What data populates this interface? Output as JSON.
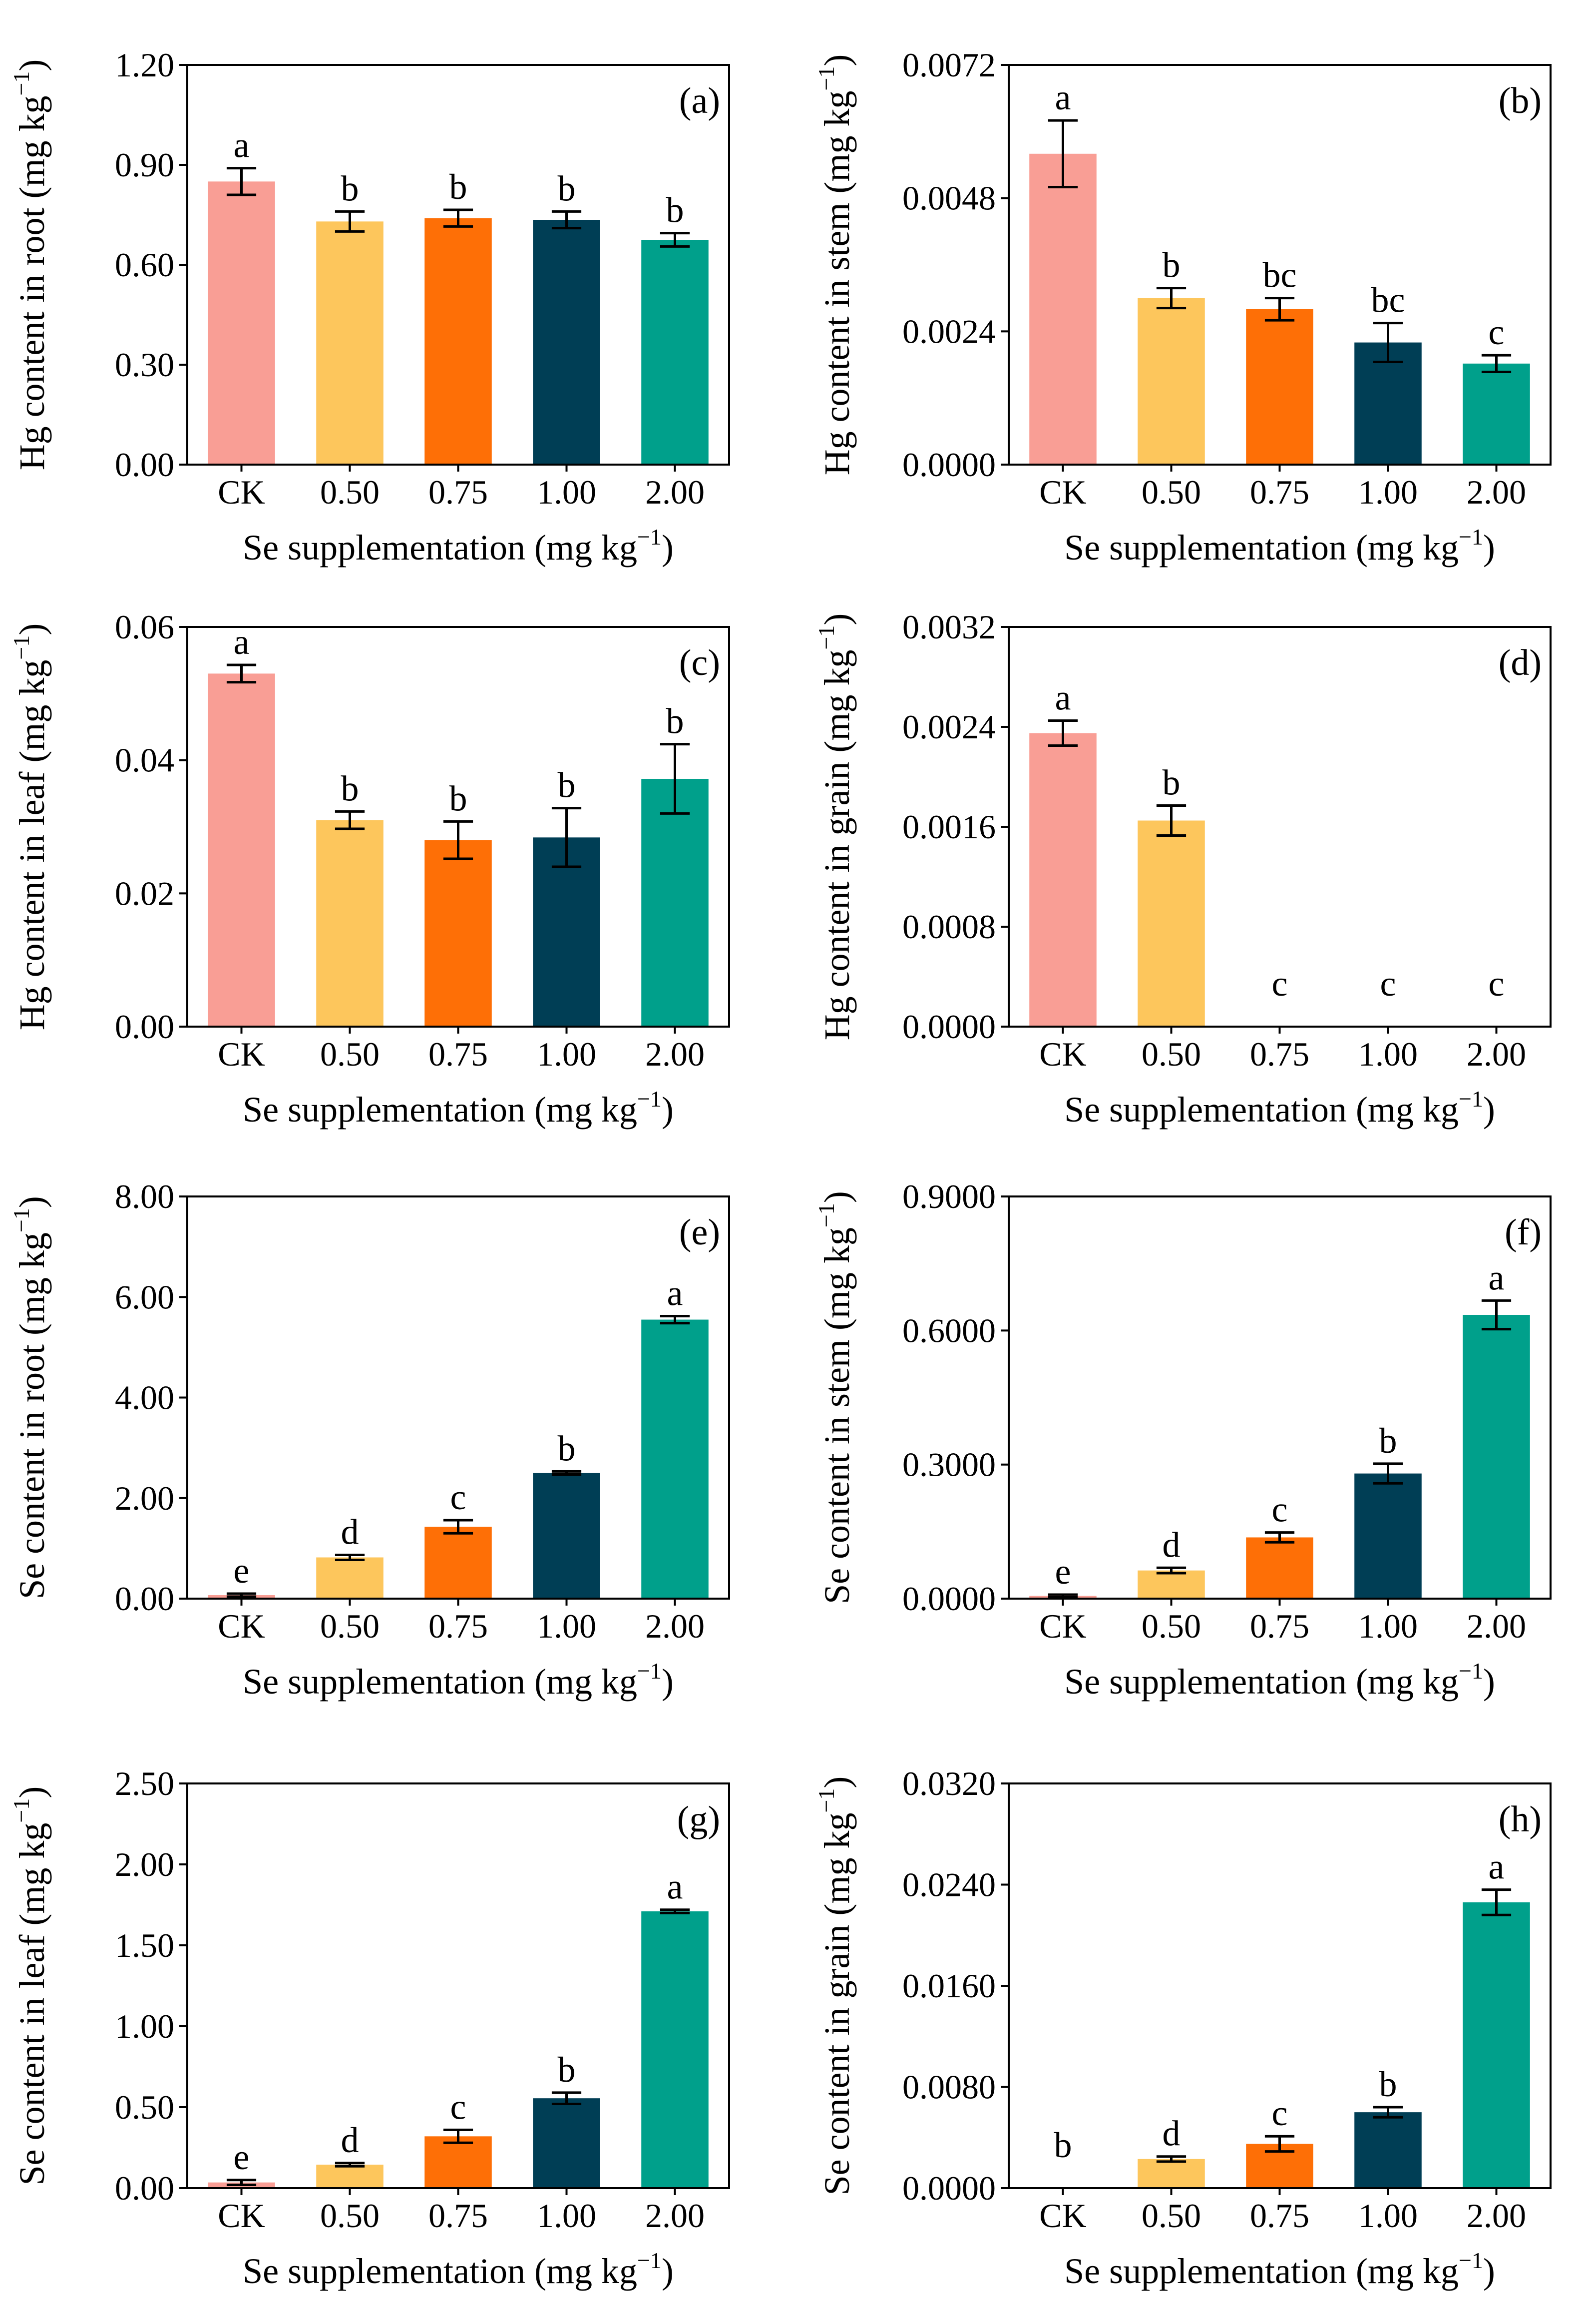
{
  "colors": {
    "CK": "#F99E95",
    "0.50": "#FDC65C",
    "0.75": "#FE6F06",
    "1.00": "#003E55",
    "2.00": "#00A08B"
  },
  "chart_data": [
    {
      "panel": "(a)",
      "type": "bar",
      "categories": [
        "CK",
        "0.50",
        "0.75",
        "1.00",
        "2.00"
      ],
      "values": [
        0.85,
        0.73,
        0.74,
        0.735,
        0.675
      ],
      "errors": [
        0.04,
        0.03,
        0.025,
        0.025,
        0.02
      ],
      "letters": [
        "a",
        "b",
        "b",
        "b",
        "b"
      ],
      "ylabel": "Hg content in root (mg kg",
      "ylabel_sup": "−1",
      "ylabel_suffix": ")",
      "xlabel": "Se supplementation (mg kg",
      "xlabel_sup": "−1",
      "xlabel_suffix": ")",
      "ylim": [
        0,
        1.2
      ],
      "yticks": [
        "0.00",
        "0.30",
        "0.60",
        "0.90",
        "1.20"
      ],
      "legend": "top-right"
    },
    {
      "panel": "(b)",
      "type": "bar",
      "categories": [
        "CK",
        "0.50",
        "0.75",
        "1.00",
        "2.00"
      ],
      "values": [
        0.0056,
        0.003,
        0.0028,
        0.0022,
        0.00182
      ],
      "errors": [
        0.0006,
        0.00018,
        0.0002,
        0.00035,
        0.00015
      ],
      "letters": [
        "a",
        "b",
        "bc",
        "bc",
        "c"
      ],
      "ylabel": "Hg content in stem (mg kg",
      "ylabel_sup": "−1",
      "ylabel_suffix": ")",
      "xlabel": "Se supplementation (mg kg",
      "xlabel_sup": "−1",
      "xlabel_suffix": ")",
      "ylim": [
        0,
        0.0072
      ],
      "yticks": [
        "0.0000",
        "0.0024",
        "0.0048",
        "0.0072"
      ],
      "legend": "top-right"
    },
    {
      "panel": "(c)",
      "type": "bar",
      "categories": [
        "CK",
        "0.50",
        "0.75",
        "1.00",
        "2.00"
      ],
      "values": [
        0.053,
        0.031,
        0.028,
        0.0284,
        0.0372
      ],
      "errors": [
        0.0013,
        0.0013,
        0.0028,
        0.0044,
        0.0052
      ],
      "letters": [
        "a",
        "b",
        "b",
        "b",
        "b"
      ],
      "ylabel": "Hg content in leaf (mg kg",
      "ylabel_sup": "−1",
      "ylabel_suffix": ")",
      "xlabel": "Se supplementation (mg kg",
      "xlabel_sup": "−1",
      "xlabel_suffix": ")",
      "ylim": [
        0,
        0.06
      ],
      "yticks": [
        "0.00",
        "0.02",
        "0.04",
        "0.06"
      ],
      "legend": "top-right"
    },
    {
      "panel": "(d)",
      "type": "bar",
      "categories": [
        "CK",
        "0.50",
        "0.75",
        "1.00",
        "2.00"
      ],
      "values": [
        0.00235,
        0.00165,
        0,
        0,
        0
      ],
      "errors": [
        0.0001,
        0.00012,
        0,
        0,
        0
      ],
      "letters": [
        "a",
        "b",
        "c",
        "c",
        "c"
      ],
      "ylabel": "Hg content in grain (mg kg",
      "ylabel_sup": "−1",
      "ylabel_suffix": ")",
      "xlabel": "Se supplementation (mg kg",
      "xlabel_sup": "−1",
      "xlabel_suffix": ")",
      "ylim": [
        0,
        0.0032
      ],
      "yticks": [
        "0.0000",
        "0.0008",
        "0.0016",
        "0.0024",
        "0.0032"
      ],
      "legend": "top-right"
    },
    {
      "panel": "(e)",
      "type": "bar",
      "categories": [
        "CK",
        "0.50",
        "0.75",
        "1.00",
        "2.00"
      ],
      "values": [
        0.07,
        0.82,
        1.43,
        2.5,
        5.55
      ],
      "errors": [
        0.03,
        0.05,
        0.13,
        0.03,
        0.07
      ],
      "letters": [
        "e",
        "d",
        "c",
        "b",
        "a"
      ],
      "ylabel": "Se content in root (mg kg",
      "ylabel_sup": "−1",
      "ylabel_suffix": ")",
      "xlabel": "Se supplementation (mg kg",
      "xlabel_sup": "−1",
      "xlabel_suffix": ")",
      "ylim": [
        0,
        8
      ],
      "yticks": [
        "0.00",
        "2.00",
        "4.00",
        "6.00",
        "8.00"
      ],
      "legend": "top-right"
    },
    {
      "panel": "(f)",
      "type": "bar",
      "categories": [
        "CK",
        "0.50",
        "0.75",
        "1.00",
        "2.00"
      ],
      "values": [
        0.006,
        0.063,
        0.137,
        0.28,
        0.635
      ],
      "errors": [
        0.003,
        0.006,
        0.011,
        0.022,
        0.032
      ],
      "letters": [
        "e",
        "d",
        "c",
        "b",
        "a"
      ],
      "ylabel": "Se content in stem (mg kg",
      "ylabel_sup": "−1",
      "ylabel_suffix": ")",
      "xlabel": "Se supplementation (mg kg",
      "xlabel_sup": "−1",
      "xlabel_suffix": ")",
      "ylim": [
        0,
        0.9
      ],
      "yticks": [
        "0.0000",
        "0.3000",
        "0.6000",
        "0.9000"
      ],
      "legend": "top-right"
    },
    {
      "panel": "(g)",
      "type": "bar",
      "categories": [
        "CK",
        "0.50",
        "0.75",
        "1.00",
        "2.00"
      ],
      "values": [
        0.035,
        0.145,
        0.32,
        0.555,
        1.71
      ],
      "errors": [
        0.015,
        0.01,
        0.04,
        0.035,
        0.01
      ],
      "letters": [
        "e",
        "d",
        "c",
        "b",
        "a"
      ],
      "ylabel": "Se content in leaf (mg kg",
      "ylabel_sup": "−1",
      "ylabel_suffix": ")",
      "xlabel": "Se supplementation (mg kg",
      "xlabel_sup": "−1",
      "xlabel_suffix": ")",
      "ylim": [
        0,
        2.5
      ],
      "yticks": [
        "0.00",
        "0.50",
        "1.00",
        "1.50",
        "2.00",
        "2.50"
      ],
      "legend": "top-right"
    },
    {
      "panel": "(h)",
      "type": "bar",
      "categories": [
        "CK",
        "0.50",
        "0.75",
        "1.00",
        "2.00"
      ],
      "values": [
        0,
        0.0023,
        0.0035,
        0.006,
        0.0226
      ],
      "errors": [
        0,
        0.0002,
        0.0006,
        0.0004,
        0.001
      ],
      "letters": [
        "b",
        "d",
        "c",
        "b",
        "a"
      ],
      "ylabel": "Se content in grain (mg kg",
      "ylabel_sup": "−1",
      "ylabel_suffix": ")",
      "xlabel": "Se supplementation (mg kg",
      "xlabel_sup": "−1",
      "xlabel_suffix": ")",
      "ylim": [
        0,
        0.032
      ],
      "yticks": [
        "0.0000",
        "0.0080",
        "0.0160",
        "0.0240",
        "0.0320"
      ],
      "legend": "top-right"
    }
  ]
}
